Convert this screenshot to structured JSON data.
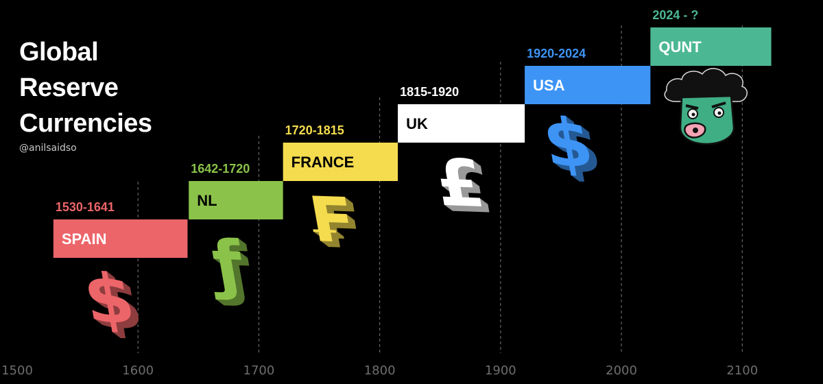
{
  "title": "Global\nReserve\nCurrencies",
  "subtitle": "@anilsaidso",
  "chart_data": {
    "type": "bar",
    "orientation": "horizontal-timeline",
    "xlim": [
      1500,
      2160
    ],
    "x_ticks": [
      1500,
      1600,
      1700,
      1800,
      1900,
      2000,
      2100
    ],
    "grid": "vertical-dashed",
    "series": [
      {
        "name": "SPAIN",
        "period": "1530-1641",
        "start": 1530,
        "end": 1641,
        "color": "#ec6569",
        "text_color": "#ffffff",
        "symbol": "$",
        "symbol_icon": "dollar-3d-icon"
      },
      {
        "name": "NL",
        "period": "1642-1720",
        "start": 1642,
        "end": 1720,
        "color": "#8bc34a",
        "text_color": "#000000",
        "symbol": "ƒ",
        "symbol_icon": "guilder-3d-icon"
      },
      {
        "name": "FRANCE",
        "period": "1720-1815",
        "start": 1720,
        "end": 1815,
        "color": "#f5dc4e",
        "text_color": "#000000",
        "symbol": "₣",
        "symbol_icon": "franc-3d-icon"
      },
      {
        "name": "UK",
        "period": "1815-1920",
        "start": 1815,
        "end": 1920,
        "color": "#ffffff",
        "text_color": "#000000",
        "symbol": "£",
        "symbol_icon": "pound-3d-icon"
      },
      {
        "name": "USA",
        "period": "1920-2024",
        "start": 1920,
        "end": 2024,
        "color": "#3d94f5",
        "text_color": "#ffffff",
        "symbol": "$",
        "symbol_icon": "dollar-3d-icon"
      },
      {
        "name": "QUNT",
        "period": "2024 - ?",
        "start": 2024,
        "end": 2124,
        "color": "#4cb893",
        "text_color": "#ffffff",
        "symbol": "",
        "symbol_icon": "zombie-face-icon"
      }
    ]
  }
}
